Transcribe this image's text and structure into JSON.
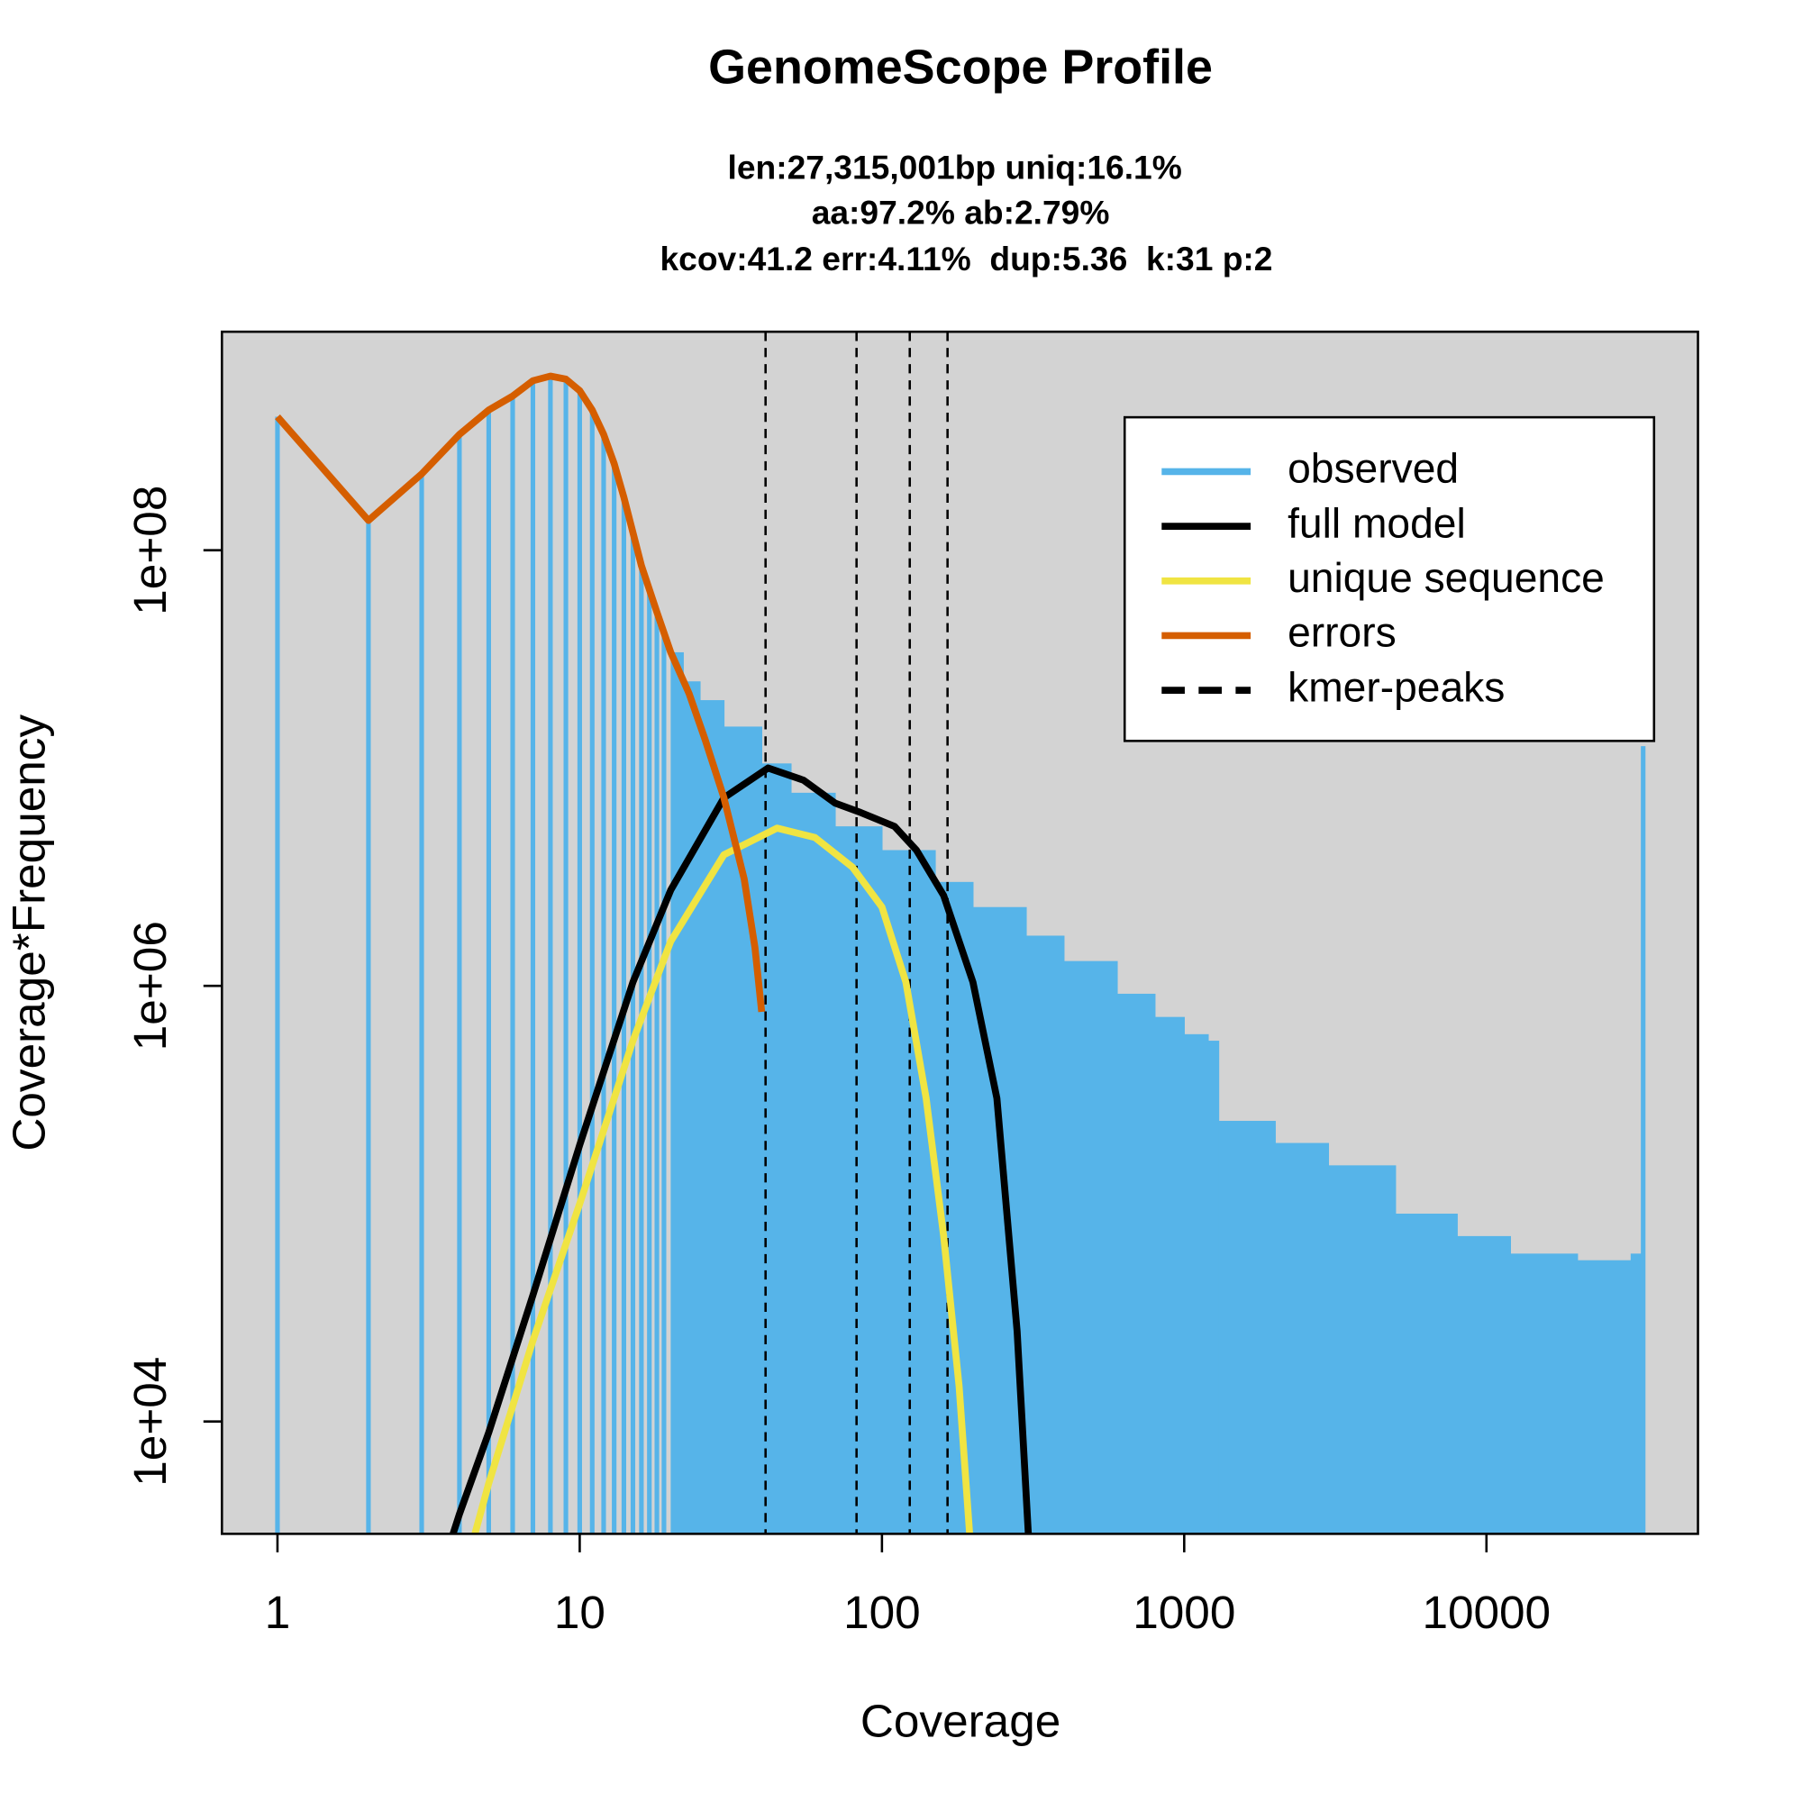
{
  "chart_data": {
    "type": "line",
    "title": "GenomeScope Profile",
    "subtitle": [
      "len:27,315,001bp uniq:16.1%",
      "aa:97.2% ab:2.79%",
      "kcov:41.2 err:4.11%  dup:5.36  k:31 p:2"
    ],
    "x_label": "Coverage",
    "y_label": "Coverage*Frequency",
    "xlog": true,
    "ylog": true,
    "xlim": [
      0.655,
      50100
    ],
    "ylim": [
      3050,
      1007000000
    ],
    "xticks": [
      1,
      10,
      100,
      1000,
      10000
    ],
    "yticks": [
      {
        "value": 10000,
        "label": "1e+04"
      },
      {
        "value": 1000000,
        "label": "1e+06"
      },
      {
        "value": 100000000,
        "label": "1e+08"
      }
    ],
    "background": "#d3d3d3",
    "legend": "top-right",
    "series": [
      {
        "name": "observed",
        "color": "#56B4E9",
        "style": "histogram",
        "x": [
          1,
          2,
          3,
          4,
          5,
          6,
          7,
          8,
          9,
          10,
          11,
          12,
          13,
          14,
          15,
          16,
          17,
          18,
          19,
          20,
          22,
          25,
          30,
          40,
          50,
          70,
          100,
          150,
          200,
          300,
          400,
          600,
          800,
          1000,
          1200,
          1300,
          2000,
          3000,
          5000,
          8000,
          12000,
          20000,
          30000,
          33000
        ],
        "values": [
          410000000,
          137000000,
          224000000,
          340000000,
          440000000,
          510000000,
          600000000,
          630000000,
          610000000,
          540000000,
          440000000,
          340000000,
          250000000,
          175000000,
          120000000,
          85000000,
          66000000,
          52000000,
          42000000,
          34000000,
          25000000,
          20500000,
          15500000,
          10500000,
          7700000,
          5400000,
          4200000,
          3000000,
          2300000,
          1700000,
          1300000,
          920000,
          720000,
          600000,
          560000,
          240000,
          190000,
          150000,
          90000,
          71000,
          59000,
          55000,
          59000,
          12600000
        ]
      },
      {
        "name": "full model",
        "color": "#000000",
        "style": "line",
        "x": [
          3.81,
          4,
          5,
          7,
          10,
          15,
          20,
          30,
          42,
          55,
          70,
          85,
          110,
          130,
          160,
          200,
          240,
          280,
          305
        ],
        "values": [
          3050,
          3760,
          8900,
          38000,
          186000,
          1040000,
          2750000,
          7300000,
          10000000,
          8800000,
          6900000,
          6250000,
          5400000,
          4200000,
          2600000,
          1040000,
          305000,
          26000,
          3050
        ]
      },
      {
        "name": "unique sequence",
        "color": "#F0E442",
        "style": "line",
        "x": [
          4.5,
          5,
          7,
          10,
          15,
          20,
          30,
          45,
          60,
          80,
          100,
          120,
          140,
          160,
          180,
          195
        ],
        "values": [
          3050,
          5200,
          23500,
          100000,
          560000,
          1600000,
          4000000,
          5300000,
          4800000,
          3500000,
          2300000,
          1040000,
          305000,
          71000,
          14500,
          3050
        ]
      },
      {
        "name": "errors",
        "color": "#D55E00",
        "style": "line",
        "x": [
          1,
          2,
          3,
          4,
          5,
          6,
          7,
          8,
          9,
          10,
          11,
          12,
          13,
          14,
          16,
          18,
          20,
          23,
          26,
          30,
          35,
          38,
          40
        ],
        "values": [
          410000000,
          137000000,
          224000000,
          340000000,
          440000000,
          510000000,
          600000000,
          630000000,
          610000000,
          540000000,
          440000000,
          340000000,
          250000000,
          175000000,
          85000000,
          52000000,
          34000000,
          22000000,
          13500000,
          7300000,
          3100000,
          1500000,
          760000
        ]
      }
    ],
    "kmer_peaks": {
      "name": "kmer-peaks",
      "color": "#000000",
      "values": [
        41.2,
        82.4,
        123.6,
        164.8
      ]
    }
  }
}
